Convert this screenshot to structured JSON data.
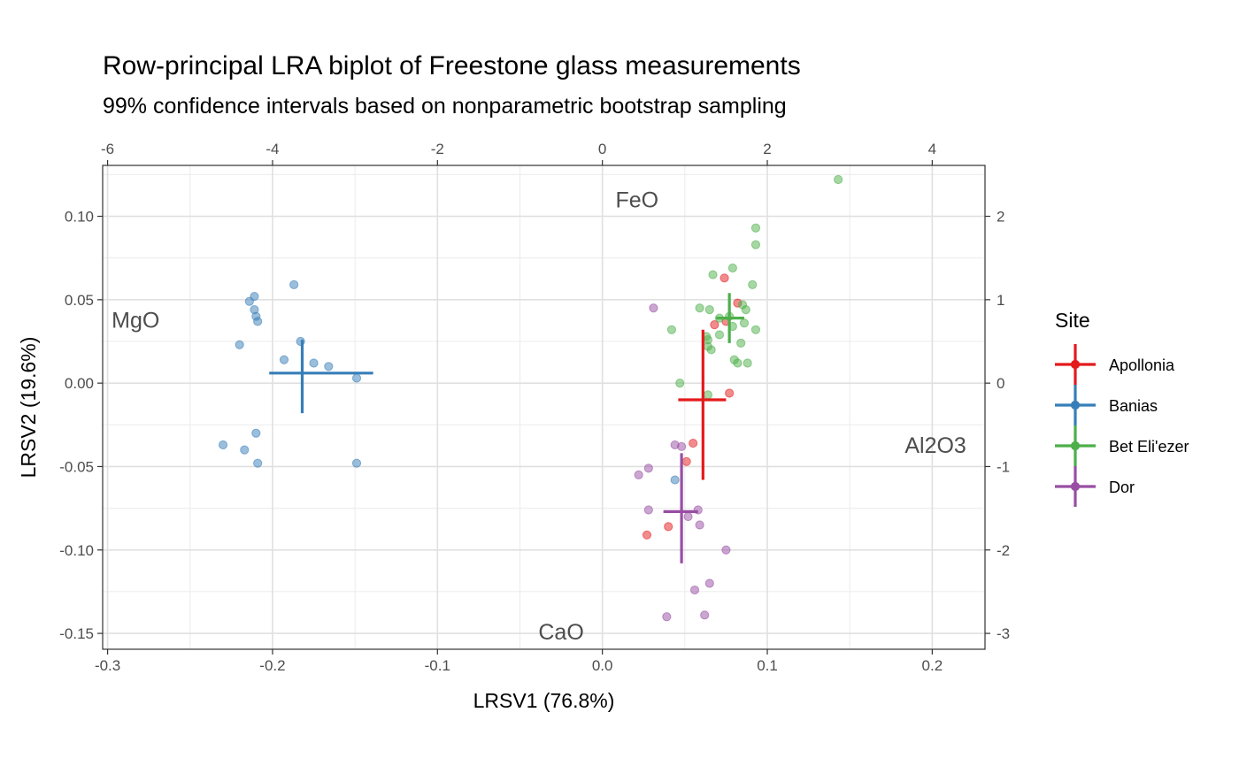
{
  "chart_data": {
    "type": "scatter",
    "title": "Row-principal LRA biplot of Freestone glass measurements",
    "subtitle": "99% confidence intervals based on nonparametric bootstrap sampling",
    "xlabel": "LRSV1 (76.8%)",
    "ylabel": "LRSV2 (19.6%)",
    "xlim": [
      -0.303,
      0.232
    ],
    "ylim": [
      -0.1595,
      0.1305
    ],
    "x_ticks": [
      -0.3,
      -0.2,
      -0.1,
      0.0,
      0.1,
      0.2
    ],
    "x_tick_labels": [
      "-0.3",
      "-0.2",
      "-0.1",
      "0.0",
      "0.1",
      "0.2"
    ],
    "y_ticks": [
      0.1,
      0.05,
      0.0,
      -0.05,
      -0.1,
      -0.15
    ],
    "y_tick_labels": [
      "0.10",
      "0.05",
      "0.00",
      "-0.05",
      "-0.10",
      "-0.15"
    ],
    "secondary_x_ticks": [
      -6,
      -4,
      -2,
      0,
      2,
      4
    ],
    "secondary_x_tick_labels": [
      "-6",
      "-4",
      "-2",
      "0",
      "2",
      "4"
    ],
    "secondary_y_ticks": [
      2,
      1,
      0,
      -1,
      -2,
      -3
    ],
    "secondary_y_tick_labels": [
      "2",
      "1",
      "0",
      "-1",
      "-2",
      "-3"
    ],
    "secondary_scale": 20,
    "grid": true,
    "legend": {
      "title": "Site",
      "position": "right",
      "entries": [
        "Apollonia",
        "Banias",
        "Bet Eli'ezer",
        "Dor"
      ]
    },
    "colors": {
      "Apollonia": "#e41a1c",
      "Banias": "#377eb8",
      "Bet Eli'ezer": "#4daf4a",
      "Dor": "#984ea3"
    },
    "variables": [
      {
        "name": "FeO",
        "x": 0.021,
        "y": 0.11
      },
      {
        "name": "MgO",
        "x": -0.283,
        "y": 0.038
      },
      {
        "name": "Al2O3",
        "x": 0.202,
        "y": -0.037
      },
      {
        "name": "CaO",
        "x": -0.025,
        "y": -0.149
      }
    ],
    "series": [
      {
        "name": "Apollonia",
        "points": [
          [
            0.074,
            0.063
          ],
          [
            0.082,
            0.048
          ],
          [
            0.075,
            0.037
          ],
          [
            0.068,
            0.035
          ],
          [
            0.077,
            -0.006
          ],
          [
            0.055,
            -0.036
          ],
          [
            0.051,
            -0.047
          ],
          [
            0.04,
            -0.086
          ],
          [
            0.027,
            -0.091
          ]
        ],
        "ci": {
          "x": 0.061,
          "y": -0.01,
          "xlo": 0.046,
          "xhi": 0.075,
          "ylo": -0.058,
          "yhi": 0.032
        }
      },
      {
        "name": "Banias",
        "points": [
          [
            -0.187,
            0.059
          ],
          [
            -0.211,
            0.052
          ],
          [
            -0.214,
            0.049
          ],
          [
            -0.211,
            0.044
          ],
          [
            -0.21,
            0.04
          ],
          [
            -0.209,
            0.037
          ],
          [
            -0.22,
            0.023
          ],
          [
            -0.183,
            0.025
          ],
          [
            -0.193,
            0.014
          ],
          [
            -0.175,
            0.012
          ],
          [
            -0.166,
            0.01
          ],
          [
            -0.149,
            0.003
          ],
          [
            -0.21,
            -0.03
          ],
          [
            -0.23,
            -0.037
          ],
          [
            -0.217,
            -0.04
          ],
          [
            -0.209,
            -0.048
          ],
          [
            -0.149,
            -0.048
          ],
          [
            0.044,
            -0.058
          ]
        ],
        "ci": {
          "x": -0.182,
          "y": 0.006,
          "xlo": -0.202,
          "xhi": -0.139,
          "ylo": -0.018,
          "yhi": 0.026
        }
      },
      {
        "name": "Bet Eli'ezer",
        "points": [
          [
            0.143,
            0.122
          ],
          [
            0.093,
            0.093
          ],
          [
            0.093,
            0.083
          ],
          [
            0.079,
            0.069
          ],
          [
            0.067,
            0.065
          ],
          [
            0.091,
            0.059
          ],
          [
            0.059,
            0.045
          ],
          [
            0.065,
            0.044
          ],
          [
            0.085,
            0.047
          ],
          [
            0.087,
            0.044
          ],
          [
            0.071,
            0.039
          ],
          [
            0.077,
            0.04
          ],
          [
            0.086,
            0.036
          ],
          [
            0.079,
            0.034
          ],
          [
            0.093,
            0.032
          ],
          [
            0.063,
            0.028
          ],
          [
            0.071,
            0.029
          ],
          [
            0.064,
            0.026
          ],
          [
            0.064,
            0.022
          ],
          [
            0.066,
            0.02
          ],
          [
            0.084,
            0.024
          ],
          [
            0.08,
            0.014
          ],
          [
            0.082,
            0.012
          ],
          [
            0.088,
            0.012
          ],
          [
            0.042,
            0.032
          ],
          [
            0.047,
            0.0
          ],
          [
            0.064,
            -0.007
          ]
        ],
        "ci": {
          "x": 0.077,
          "y": 0.039,
          "xlo": 0.069,
          "xhi": 0.086,
          "ylo": 0.024,
          "yhi": 0.054
        }
      },
      {
        "name": "Dor",
        "points": [
          [
            0.031,
            0.045
          ],
          [
            0.044,
            -0.037
          ],
          [
            0.048,
            -0.038
          ],
          [
            0.028,
            -0.051
          ],
          [
            0.022,
            -0.055
          ],
          [
            0.028,
            -0.076
          ],
          [
            0.058,
            -0.076
          ],
          [
            0.052,
            -0.08
          ],
          [
            0.059,
            -0.085
          ],
          [
            0.075,
            -0.1
          ],
          [
            0.065,
            -0.12
          ],
          [
            0.056,
            -0.124
          ],
          [
            0.039,
            -0.14
          ],
          [
            0.062,
            -0.139
          ]
        ],
        "ci": {
          "x": 0.048,
          "y": -0.077,
          "xlo": 0.037,
          "xhi": 0.058,
          "ylo": -0.108,
          "yhi": -0.042
        }
      }
    ]
  }
}
